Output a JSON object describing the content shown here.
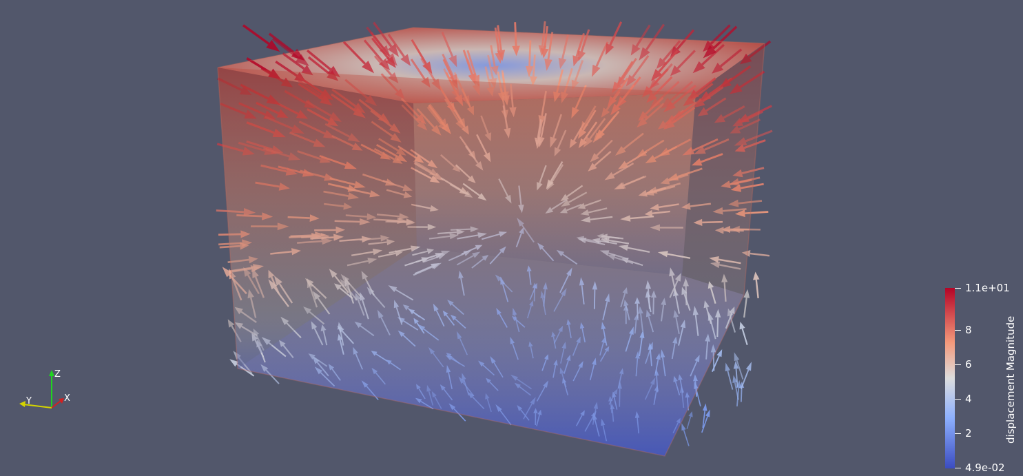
{
  "colorbar": {
    "title": "displacement Magnitude",
    "max_label": "1.1e+01",
    "min_label": "4.9e-02",
    "tick_labels": [
      "8",
      "6",
      "4",
      "2"
    ],
    "colormap": {
      "high": "#b40426",
      "mid_high": "#f4987a",
      "mid": "#dddddd",
      "mid_low": "#8db0fe",
      "low": "#3b4cc0"
    }
  },
  "orientation_axes": {
    "x_label": "X",
    "y_label": "Y",
    "z_label": "Z",
    "x_color": "#d42020",
    "y_color": "#d4d400",
    "z_color": "#20d420"
  },
  "scene": {
    "background": "#52576b",
    "glyph_type": "arrow",
    "box_style": "semi-transparent surface"
  }
}
